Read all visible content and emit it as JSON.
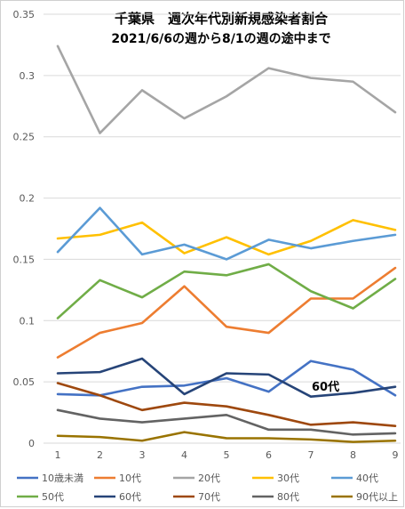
{
  "chart_data": {
    "type": "line",
    "title": "千葉県　週次年代別新規感染者割合",
    "subtitle": "2021/6/6の週から8/1の週の途中まで",
    "xlabel": "",
    "ylabel": "",
    "x": [
      1,
      2,
      3,
      4,
      5,
      6,
      7,
      8,
      9
    ],
    "ylim": [
      0,
      0.35
    ],
    "yticks": [
      "0",
      "0.05",
      "0.1",
      "0.15",
      "0.2",
      "0.25",
      "0.3",
      "0.35"
    ],
    "grid": true,
    "legend_position": "bottom",
    "annotation": "60代",
    "series": [
      {
        "name": "10歳未満",
        "color": "#4472C4",
        "values": [
          0.04,
          0.039,
          0.046,
          0.047,
          0.053,
          0.042,
          0.067,
          0.06,
          0.039
        ]
      },
      {
        "name": "10代",
        "color": "#ED7D31",
        "values": [
          0.07,
          0.09,
          0.098,
          0.128,
          0.095,
          0.09,
          0.118,
          0.118,
          0.143
        ]
      },
      {
        "name": "20代",
        "color": "#A5A5A5",
        "values": [
          0.324,
          0.253,
          0.288,
          0.265,
          0.283,
          0.306,
          0.298,
          0.295,
          0.27
        ]
      },
      {
        "name": "30代",
        "color": "#FFC000",
        "values": [
          0.167,
          0.17,
          0.18,
          0.155,
          0.168,
          0.154,
          0.165,
          0.182,
          0.174
        ]
      },
      {
        "name": "40代",
        "color": "#5B9BD5",
        "values": [
          0.156,
          0.192,
          0.154,
          0.162,
          0.15,
          0.166,
          0.159,
          0.165,
          0.17
        ]
      },
      {
        "name": "50代",
        "color": "#70AD47",
        "values": [
          0.102,
          0.133,
          0.119,
          0.14,
          0.137,
          0.146,
          0.124,
          0.11,
          0.134
        ]
      },
      {
        "name": "60代",
        "color": "#264478",
        "values": [
          0.057,
          0.058,
          0.069,
          0.04,
          0.057,
          0.056,
          0.038,
          0.041,
          0.046
        ]
      },
      {
        "name": "70代",
        "color": "#9E480E",
        "values": [
          0.049,
          0.039,
          0.027,
          0.033,
          0.03,
          0.023,
          0.015,
          0.017,
          0.014
        ]
      },
      {
        "name": "80代",
        "color": "#636363",
        "values": [
          0.027,
          0.02,
          0.017,
          0.02,
          0.023,
          0.011,
          0.011,
          0.007,
          0.008
        ]
      },
      {
        "name": "90代以上",
        "color": "#997300",
        "values": [
          0.006,
          0.005,
          0.002,
          0.009,
          0.004,
          0.004,
          0.003,
          0.001,
          0.002
        ]
      }
    ]
  }
}
